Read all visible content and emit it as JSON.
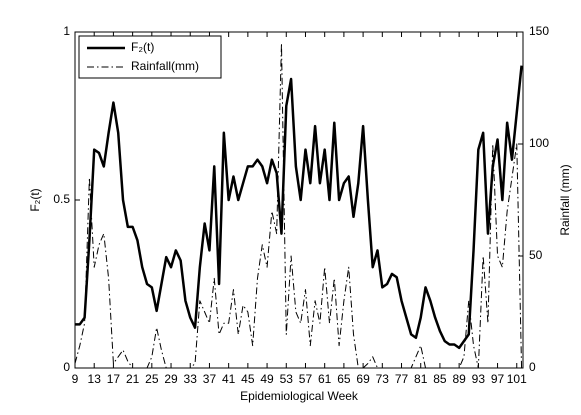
{
  "chart_data": {
    "type": "line",
    "xlabel": "Epidemiological Week",
    "ylabel": "F₂(t)",
    "y2label": "Rainfall (mm)",
    "x": [
      9,
      10,
      11,
      12,
      13,
      14,
      15,
      16,
      17,
      18,
      19,
      20,
      21,
      22,
      23,
      24,
      25,
      26,
      27,
      28,
      29,
      30,
      31,
      32,
      33,
      34,
      35,
      36,
      37,
      38,
      39,
      40,
      41,
      42,
      43,
      44,
      45,
      46,
      47,
      48,
      49,
      50,
      51,
      52,
      53,
      54,
      55,
      56,
      57,
      58,
      59,
      60,
      61,
      62,
      63,
      64,
      65,
      66,
      67,
      68,
      69,
      70,
      71,
      72,
      73,
      74,
      75,
      76,
      77,
      78,
      79,
      80,
      81,
      82,
      83,
      84,
      85,
      86,
      87,
      88,
      89,
      90,
      91,
      92,
      93,
      94,
      95,
      96,
      97,
      98,
      99,
      100,
      101,
      102
    ],
    "series": [
      {
        "name": "F₂(t)",
        "color": "#000000",
        "dash": "solid",
        "width": 2.5,
        "values": [
          0.13,
          0.13,
          0.15,
          0.38,
          0.65,
          0.64,
          0.6,
          0.7,
          0.79,
          0.7,
          0.5,
          0.42,
          0.42,
          0.38,
          0.3,
          0.25,
          0.24,
          0.17,
          0.25,
          0.33,
          0.3,
          0.35,
          0.32,
          0.2,
          0.15,
          0.12,
          0.3,
          0.43,
          0.35,
          0.6,
          0.25,
          0.7,
          0.5,
          0.57,
          0.5,
          0.55,
          0.6,
          0.6,
          0.62,
          0.6,
          0.55,
          0.62,
          0.58,
          0.4,
          0.78,
          0.86,
          0.6,
          0.5,
          0.65,
          0.55,
          0.72,
          0.55,
          0.65,
          0.5,
          0.73,
          0.5,
          0.55,
          0.57,
          0.45,
          0.55,
          0.72,
          0.5,
          0.3,
          0.35,
          0.24,
          0.25,
          0.28,
          0.27,
          0.2,
          0.15,
          0.1,
          0.09,
          0.15,
          0.24,
          0.2,
          0.15,
          0.11,
          0.08,
          0.07,
          0.07,
          0.06,
          0.08,
          0.1,
          0.35,
          0.65,
          0.7,
          0.4,
          0.6,
          0.68,
          0.5,
          0.73,
          0.62,
          0.76,
          0.9
        ]
      },
      {
        "name": "Rainfall(mm)",
        "color": "#000000",
        "dash": "dashdot",
        "width": 1,
        "axis": "y2",
        "values": [
          2,
          10,
          20,
          85,
          45,
          55,
          60,
          40,
          2,
          5,
          8,
          3,
          0,
          0,
          0,
          0,
          5,
          18,
          8,
          0,
          0,
          0,
          0,
          0,
          0,
          2,
          30,
          25,
          20,
          40,
          15,
          20,
          20,
          35,
          15,
          28,
          25,
          10,
          40,
          55,
          45,
          70,
          60,
          145,
          15,
          50,
          25,
          20,
          35,
          10,
          30,
          20,
          45,
          20,
          40,
          10,
          30,
          45,
          15,
          0,
          0,
          2,
          5,
          0,
          0,
          0,
          0,
          0,
          0,
          0,
          0,
          5,
          10,
          0,
          0,
          0,
          0,
          0,
          0,
          0,
          0,
          5,
          30,
          10,
          0,
          50,
          20,
          100,
          50,
          45,
          70,
          85,
          100,
          0
        ]
      }
    ],
    "xlim": [
      9,
      102.3
    ],
    "xticks": [
      9,
      13,
      17,
      21,
      25,
      29,
      33,
      37,
      41,
      45,
      49,
      53,
      57,
      61,
      65,
      69,
      73,
      77,
      81,
      85,
      89,
      93,
      97,
      101
    ],
    "ylim": [
      0,
      1
    ],
    "yticks": [
      0,
      0.5,
      1
    ],
    "y2lim": [
      0,
      150
    ],
    "y2ticks": [
      0,
      50,
      100,
      150
    ],
    "legend": "upper left"
  }
}
